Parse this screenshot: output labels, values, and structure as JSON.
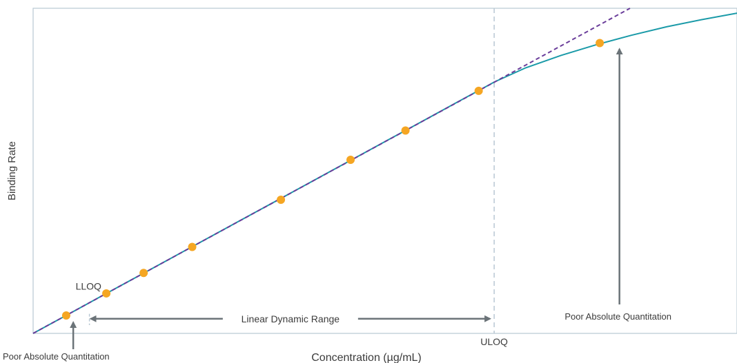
{
  "chart_data": {
    "type": "line",
    "title": "",
    "xlabel": "Concentration (µg/mL)",
    "ylabel": "Binding Rate",
    "grid": false,
    "legend": "none",
    "xlim": [
      0,
      1
    ],
    "ylim": [
      0,
      1
    ],
    "points": [
      {
        "x": 0.047,
        "y": 0.055
      },
      {
        "x": 0.104,
        "y": 0.123
      },
      {
        "x": 0.157,
        "y": 0.186
      },
      {
        "x": 0.226,
        "y": 0.266
      },
      {
        "x": 0.352,
        "y": 0.411
      },
      {
        "x": 0.451,
        "y": 0.534
      },
      {
        "x": 0.529,
        "y": 0.624
      },
      {
        "x": 0.633,
        "y": 0.746
      },
      {
        "x": 0.805,
        "y": 0.893
      }
    ],
    "linear_fit": {
      "x": [
        0,
        0.848
      ],
      "y": [
        0,
        1.0
      ]
    },
    "response_curve": {
      "x": [
        0,
        0.05,
        0.1,
        0.15,
        0.2,
        0.25,
        0.3,
        0.35,
        0.4,
        0.45,
        0.5,
        0.55,
        0.6,
        0.65,
        0.655,
        0.7,
        0.75,
        0.8,
        0.85,
        0.9,
        0.95,
        1.0
      ],
      "y": [
        0,
        0.059,
        0.118,
        0.177,
        0.236,
        0.295,
        0.354,
        0.413,
        0.472,
        0.531,
        0.59,
        0.649,
        0.708,
        0.767,
        0.773,
        0.817,
        0.855,
        0.888,
        0.917,
        0.943,
        0.965,
        0.985
      ]
    },
    "limits": [
      {
        "name": "LLOQ",
        "x": 0.08
      },
      {
        "name": "ULOQ",
        "x": 0.655
      }
    ],
    "annotations": [
      {
        "text": "Linear Dynamic Range",
        "x_from": 0.08,
        "x_to": 0.655,
        "y": 0.045
      },
      {
        "text": "Poor Absolute Quantitation",
        "x": 0.057,
        "y": 0.055,
        "position": "below-left"
      },
      {
        "text": "Poor Absolute Quantitation",
        "x": 0.833,
        "y": 0.883,
        "position": "below-right"
      }
    ],
    "colors": {
      "points": "#f5a623",
      "linear_fit": "#6a3d9a",
      "response_curve": "#1a9aa8",
      "limit_lines": "#b8c7d3",
      "arrows": "#6b7378",
      "axis": "#b8c7d3"
    }
  }
}
